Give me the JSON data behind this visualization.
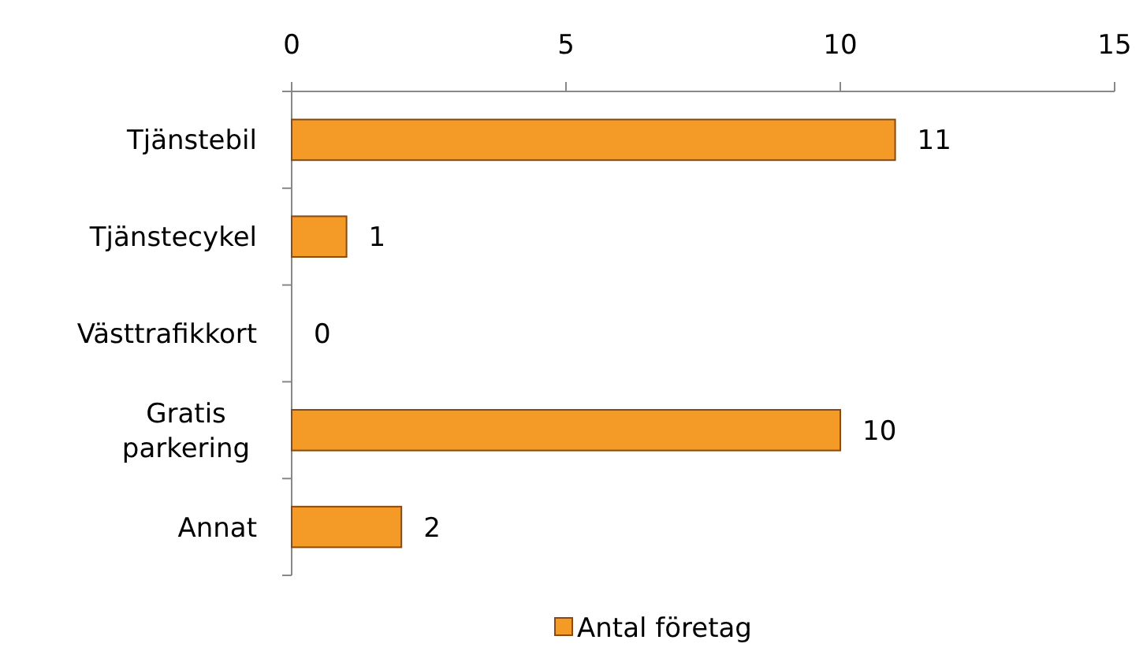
{
  "chart_data": {
    "type": "bar",
    "orientation": "horizontal",
    "categories": [
      "Tjänstebil",
      "Tjänstecykel",
      "Västtrafikkort",
      "Gratis parkering",
      "Annat"
    ],
    "series": [
      {
        "name": "Antal företag",
        "color": "#f39a27",
        "values": [
          11,
          1,
          0,
          10,
          2
        ]
      }
    ],
    "xlim": [
      0,
      15
    ],
    "xticks": [
      0,
      5,
      10,
      15
    ],
    "data_labels": true,
    "legend": "bottom",
    "grid": false
  }
}
